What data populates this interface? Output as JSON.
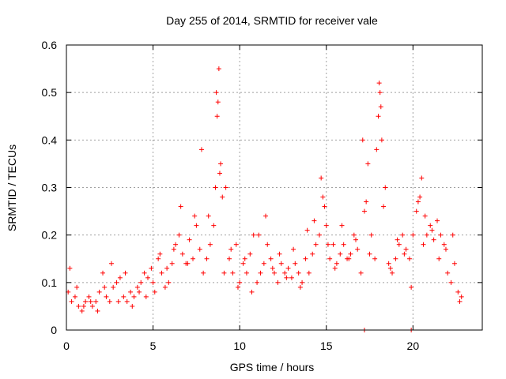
{
  "chart_data": {
    "type": "scatter",
    "title": "Day 255 of 2014, SRMTID for receiver vale",
    "xlabel": "GPS time / hours",
    "ylabel": "SRMTID / TECUs",
    "xlim": [
      0,
      24
    ],
    "ylim": [
      0,
      0.6
    ],
    "xticks": [
      0,
      5,
      10,
      15,
      20
    ],
    "yticks": [
      0,
      0.1,
      0.2,
      0.3,
      0.4,
      0.5,
      0.6
    ],
    "xtick_labels": [
      "0",
      "5",
      "10",
      "15",
      "20"
    ],
    "ytick_labels": [
      "0",
      "0.1",
      "0.2",
      "0.3",
      "0.4",
      "0.5",
      "0.6"
    ],
    "grid": true,
    "marker": "+",
    "marker_color": "#ff0000",
    "series": [
      {
        "name": "SRMTID",
        "x": [
          0.1,
          0.3,
          0.5,
          0.7,
          0.9,
          1.1,
          1.3,
          1.5,
          1.7,
          1.9,
          2.1,
          2.3,
          2.5,
          2.7,
          2.9,
          3.1,
          3.3,
          3.5,
          3.7,
          3.9,
          4.1,
          4.3,
          4.5,
          4.7,
          4.9,
          5.1,
          5.3,
          5.5,
          5.7,
          5.9,
          6.1,
          6.3,
          6.5,
          6.7,
          6.9,
          7.1,
          7.3,
          7.5,
          7.7,
          7.9,
          8.1,
          8.3,
          8.5,
          8.6,
          8.7,
          8.8,
          8.9,
          9.0,
          9.2,
          9.4,
          9.6,
          9.8,
          10.0,
          10.2,
          10.4,
          10.6,
          10.8,
          11.0,
          11.2,
          11.4,
          11.6,
          11.8,
          12.0,
          12.2,
          12.4,
          12.6,
          12.8,
          13.0,
          13.2,
          13.4,
          13.6,
          13.8,
          14.0,
          14.2,
          14.4,
          14.6,
          14.8,
          15.0,
          15.2,
          15.4,
          15.6,
          15.8,
          16.0,
          16.2,
          16.4,
          16.6,
          16.8,
          17.0,
          17.2,
          17.4,
          17.6,
          17.8,
          18.0,
          18.1,
          18.2,
          18.4,
          18.6,
          18.8,
          19.0,
          19.2,
          19.4,
          19.6,
          19.8,
          20.0,
          20.2,
          20.4,
          20.6,
          20.8,
          21.0,
          21.2,
          21.4,
          21.6,
          21.8,
          22.0,
          22.2,
          22.4,
          22.6,
          22.8,
          0.2,
          0.6,
          1.0,
          1.4,
          1.8,
          2.2,
          2.6,
          3.0,
          3.4,
          3.8,
          4.2,
          4.6,
          5.0,
          5.4,
          5.8,
          6.2,
          6.6,
          7.0,
          7.4,
          7.8,
          8.2,
          8.65,
          8.75,
          8.85,
          9.1,
          9.5,
          9.9,
          10.3,
          10.7,
          11.1,
          11.5,
          11.9,
          12.3,
          12.7,
          13.1,
          13.5,
          13.9,
          14.3,
          14.7,
          14.9,
          15.1,
          15.5,
          15.9,
          16.3,
          16.7,
          17.1,
          17.3,
          17.5,
          17.9,
          18.05,
          18.15,
          18.3,
          18.7,
          19.1,
          19.5,
          19.9,
          20.3,
          20.5,
          20.7,
          21.1,
          21.5,
          21.9,
          22.3,
          22.7,
          17.2,
          19.9
        ],
        "y": [
          0.08,
          0.06,
          0.07,
          0.05,
          0.04,
          0.06,
          0.07,
          0.05,
          0.06,
          0.08,
          0.12,
          0.07,
          0.06,
          0.09,
          0.1,
          0.11,
          0.07,
          0.06,
          0.08,
          0.07,
          0.09,
          0.1,
          0.12,
          0.11,
          0.13,
          0.08,
          0.15,
          0.12,
          0.09,
          0.1,
          0.14,
          0.18,
          0.2,
          0.16,
          0.14,
          0.19,
          0.15,
          0.22,
          0.17,
          0.12,
          0.15,
          0.18,
          0.22,
          0.3,
          0.45,
          0.55,
          0.35,
          0.28,
          0.3,
          0.15,
          0.12,
          0.18,
          0.1,
          0.14,
          0.12,
          0.16,
          0.2,
          0.1,
          0.12,
          0.14,
          0.18,
          0.15,
          0.12,
          0.1,
          0.14,
          0.12,
          0.13,
          0.11,
          0.14,
          0.12,
          0.1,
          0.15,
          0.12,
          0.16,
          0.18,
          0.2,
          0.28,
          0.22,
          0.15,
          0.18,
          0.14,
          0.16,
          0.18,
          0.15,
          0.16,
          0.2,
          0.17,
          0.12,
          0.25,
          0.35,
          0.2,
          0.15,
          0.45,
          0.5,
          0.4,
          0.3,
          0.14,
          0.12,
          0.15,
          0.18,
          0.2,
          0.17,
          0.15,
          0.2,
          0.25,
          0.28,
          0.18,
          0.2,
          0.22,
          0.19,
          0.23,
          0.2,
          0.18,
          0.12,
          0.1,
          0.14,
          0.08,
          0.07,
          0.13,
          0.09,
          0.05,
          0.06,
          0.04,
          0.09,
          0.14,
          0.06,
          0.12,
          0.05,
          0.08,
          0.07,
          0.1,
          0.16,
          0.13,
          0.17,
          0.26,
          0.14,
          0.24,
          0.38,
          0.24,
          0.5,
          0.48,
          0.33,
          0.12,
          0.17,
          0.09,
          0.15,
          0.08,
          0.2,
          0.24,
          0.13,
          0.16,
          0.11,
          0.17,
          0.09,
          0.21,
          0.23,
          0.32,
          0.26,
          0.18,
          0.13,
          0.22,
          0.15,
          0.19,
          0.4,
          0.27,
          0.16,
          0.38,
          0.52,
          0.47,
          0.26,
          0.13,
          0.19,
          0.16,
          0.09,
          0.27,
          0.32,
          0.24,
          0.21,
          0.15,
          0.17,
          0.2,
          0.06,
          0.0,
          0.0
        ]
      }
    ]
  }
}
